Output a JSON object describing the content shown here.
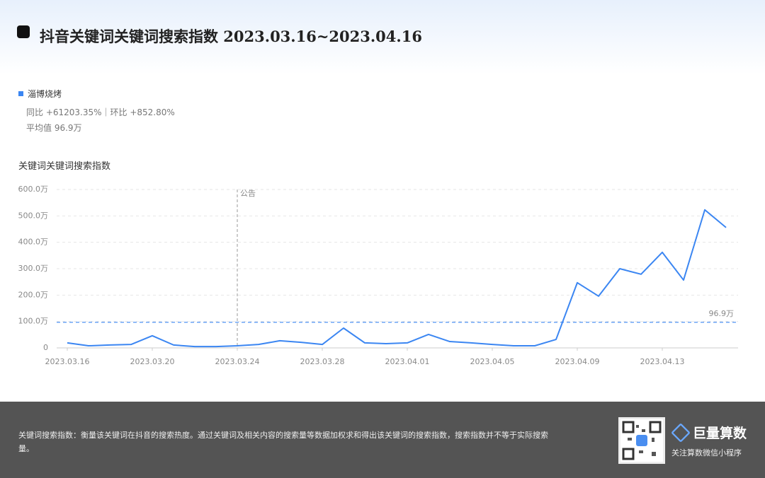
{
  "header": {
    "title": "抖音关键词关键词搜索指数 2023.03.16~2023.04.16"
  },
  "summary": {
    "series_name": "淄博烧烤",
    "change": "同比 +61203.35%｜环比 +852.80%",
    "average": "平均值 96.9万"
  },
  "chart_data": {
    "type": "line",
    "title": "关键词关键词搜索指数",
    "categories": [
      "2023.03.16",
      null,
      null,
      null,
      "2023.03.20",
      null,
      null,
      null,
      "2023.03.24",
      null,
      null,
      null,
      "2023.03.28",
      null,
      null,
      null,
      "2023.04.01",
      null,
      null,
      null,
      "2023.04.05",
      null,
      null,
      null,
      "2023.04.09",
      null,
      null,
      null,
      "2023.04.13",
      null,
      null,
      null
    ],
    "series": [
      {
        "name": "淄博烧烤",
        "color": "#3b86f2",
        "values": [
          19,
          8,
          11,
          13,
          46,
          11,
          5,
          5,
          8,
          13,
          27,
          21,
          13,
          75,
          19,
          16,
          19,
          51,
          24,
          19,
          13,
          8,
          8,
          32,
          247,
          196,
          300,
          279,
          362,
          257,
          523,
          456
        ]
      }
    ],
    "ylim": [
      0,
      600
    ],
    "yticks": [
      0,
      {
        "value": 100,
        "label": "100.0万"
      },
      {
        "value": 200,
        "label": "200.0万"
      },
      {
        "value": 300,
        "label": "300.0万"
      },
      {
        "value": 400,
        "label": "400.0万"
      },
      {
        "value": 500,
        "label": "500.0万"
      },
      {
        "value": 600,
        "label": "600.0万"
      }
    ],
    "grid": true,
    "reference_line": {
      "value": 96.9,
      "label": "96.9万"
    },
    "annotation": {
      "label": "公告",
      "at": "2023.03.24"
    }
  },
  "footer": {
    "description": "关键词搜索指数：衡量该关键词在抖音的搜索热度。通过关键词及相关内容的搜索量等数据加权求和得出该关键词的搜索指数，搜索指数并不等于实际搜索量。",
    "brand": "巨量算数",
    "brand_caption": "关注算数微信小程序"
  }
}
